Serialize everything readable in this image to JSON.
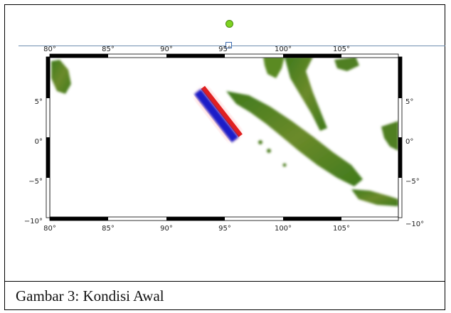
{
  "caption": "Gambar 3: Kondisi Awal",
  "map": {
    "lon_ticks": [
      "80°",
      "85°",
      "90°",
      "95°",
      "100°",
      "105°"
    ],
    "lat_ticks_left": [
      "5°",
      "0°",
      "−5°",
      "−10°"
    ],
    "lat_ticks_right": [
      "5°",
      "0°",
      "−5°",
      "−10°"
    ],
    "extent": {
      "lon": [
        80,
        110
      ],
      "lat": [
        -10,
        10
      ]
    },
    "colors": {
      "land": "#4f7f22",
      "land_high": "#8a7a3a",
      "wave_positive": "#e02020",
      "wave_negative": "#1a1ac8"
    }
  },
  "editor": {
    "rotate_handle": "rotate-handle",
    "resize_handle": "resize-handle"
  }
}
